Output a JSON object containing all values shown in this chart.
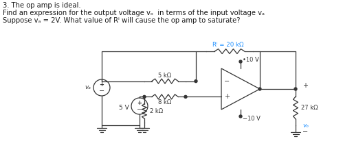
{
  "title_lines": [
    "3. The op amp is ideal.",
    "Find an expression for the output voltage vₒ  in terms of the input voltage vₐ",
    "Suppose vₐ = 2V. What value of Rⁱ will cause the op amp to saturate?"
  ],
  "bg_color": "#ffffff",
  "text_color": "#1a1a1a",
  "circuit_color": "#333333",
  "label_color_blue": "#1e90ff",
  "rf_label": "Rⁱ = 20 kΩ",
  "r1_label": "5 kΩ",
  "r2_label": "8 kΩ",
  "r3_label": "2 kΩ",
  "r4_label": "27 kΩ",
  "v_plus_label": "•10 V",
  "v_minus_label": "−10 V",
  "vs_label": "5 V",
  "va_label": "vₐ",
  "vo_label": "vₒ",
  "plus_sign": "+",
  "minus_sign": "−"
}
